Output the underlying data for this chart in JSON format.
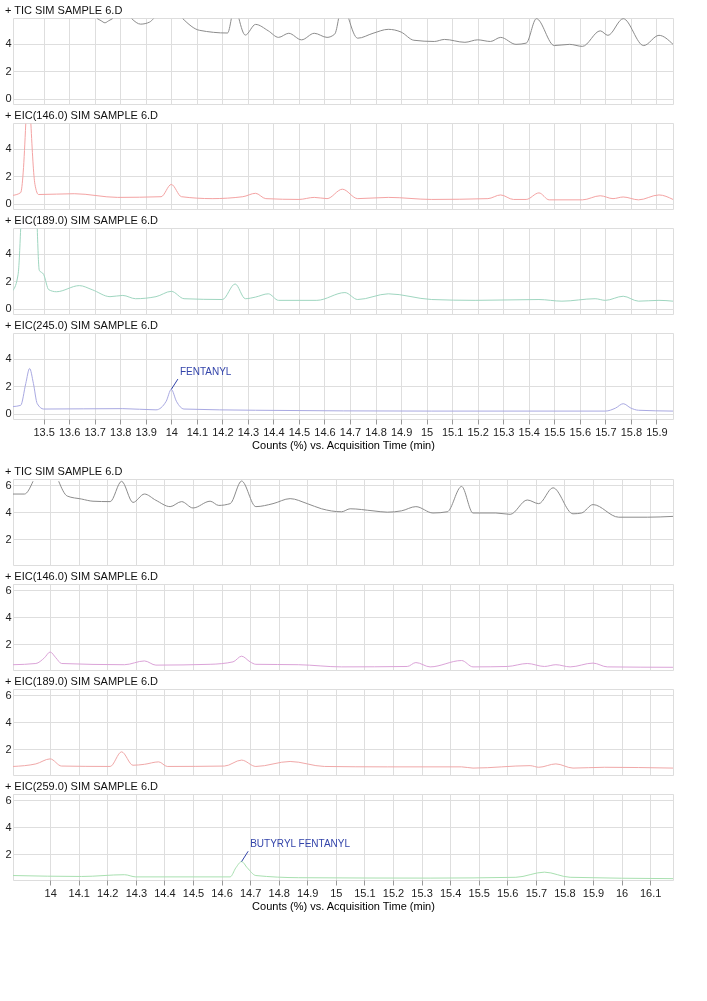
{
  "chart_data": [
    {
      "type": "line",
      "title": "+ TIC SIM SAMPLE 6.D",
      "color": "#8c8c8c",
      "grid": true,
      "tick_labels": "y",
      "xlim": [
        13.38,
        15.965
      ],
      "ylim": [
        -0.4,
        5.9
      ],
      "yticks": [
        0,
        2,
        4
      ],
      "xticks": [
        13.5,
        13.6,
        13.7,
        13.8,
        13.9,
        14,
        14.1,
        14.2,
        14.3,
        14.4,
        14.5,
        14.6,
        14.7,
        14.8,
        14.9,
        15,
        15.1,
        15.2,
        15.3,
        15.4,
        15.5,
        15.6,
        15.7,
        15.8,
        15.9
      ],
      "x": [
        13.71,
        13.725,
        13.74,
        13.755,
        13.77,
        13.775,
        13.83,
        13.845,
        13.88,
        13.915,
        13.93,
        14.03,
        14.045,
        14.11,
        14.22,
        14.235,
        14.25,
        14.265,
        14.29,
        14.33,
        14.38,
        14.42,
        14.46,
        14.51,
        14.56,
        14.61,
        14.64,
        14.655,
        14.68,
        14.695,
        14.73,
        14.79,
        14.85,
        14.9,
        14.95,
        15.03,
        15.07,
        15.15,
        15.2,
        15.25,
        15.29,
        15.35,
        15.39,
        15.43,
        15.5,
        15.56,
        15.61,
        15.68,
        15.71,
        15.77,
        15.85,
        15.91,
        15.965
      ],
      "values": [
        5.85,
        5.7,
        5.55,
        5.7,
        5.85,
        null,
        null,
        5.85,
        5.45,
        5.6,
        5.85,
        null,
        5.85,
        5.0,
        4.8,
        5.85,
        null,
        5.85,
        4.65,
        5.43,
        4.96,
        4.48,
        4.78,
        4.3,
        4.78,
        4.48,
        4.72,
        5.85,
        null,
        5.85,
        4.42,
        4.78,
        5.07,
        4.87,
        4.27,
        4.18,
        4.33,
        4.12,
        4.3,
        4.18,
        4.48,
        3.97,
        4.06,
        5.85,
        3.88,
        3.97,
        3.82,
        4.96,
        4.63,
        5.85,
        3.88,
        4.63,
        3.97
      ]
    },
    {
      "type": "line",
      "title": "+ EIC(146.0) SIM SAMPLE 6.D",
      "color": "#f4a3a3",
      "grid": true,
      "tick_labels": "y",
      "xlim": [
        13.38,
        15.965
      ],
      "ylim": [
        -0.4,
        5.9
      ],
      "yticks": [
        0,
        2,
        4
      ],
      "xticks": [
        13.5,
        13.6,
        13.7,
        13.8,
        13.9,
        14,
        14.1,
        14.2,
        14.3,
        14.4,
        14.5,
        14.6,
        14.7,
        14.8,
        14.9,
        15,
        15.1,
        15.2,
        15.3,
        15.4,
        15.5,
        15.6,
        15.7,
        15.8,
        15.9
      ],
      "x": [
        13.38,
        13.41,
        13.42,
        13.43,
        13.44,
        13.45,
        13.466,
        13.48,
        13.62,
        13.79,
        13.96,
        14.0,
        14.04,
        14.16,
        14.28,
        14.33,
        14.37,
        14.5,
        14.56,
        14.61,
        14.67,
        14.73,
        14.85,
        15.02,
        15.24,
        15.29,
        15.34,
        15.39,
        15.44,
        15.48,
        15.61,
        15.68,
        15.73,
        15.77,
        15.83,
        15.91,
        15.965
      ],
      "values": [
        0.6,
        0.8,
        2.3,
        5.85,
        null,
        5.85,
        1.4,
        0.66,
        0.72,
        0.45,
        0.5,
        1.4,
        0.5,
        0.36,
        0.5,
        0.75,
        0.36,
        0.3,
        0.45,
        0.36,
        1.05,
        0.36,
        0.45,
        0.3,
        0.36,
        0.63,
        0.3,
        0.3,
        0.78,
        0.27,
        0.27,
        0.57,
        0.36,
        0.48,
        0.27,
        0.63,
        0.3
      ]
    },
    {
      "type": "line",
      "title": "+ EIC(189.0) SIM SAMPLE 6.D",
      "color": "#9fd6c0",
      "grid": true,
      "tick_labels": "y",
      "xlim": [
        13.38,
        15.965
      ],
      "ylim": [
        -0.4,
        5.9
      ],
      "yticks": [
        0,
        2,
        4
      ],
      "xticks": [
        13.5,
        13.6,
        13.7,
        13.8,
        13.9,
        14,
        14.1,
        14.2,
        14.3,
        14.4,
        14.5,
        14.6,
        14.7,
        14.8,
        14.9,
        15,
        15.1,
        15.2,
        15.3,
        15.4,
        15.5,
        15.6,
        15.7,
        15.8,
        15.9
      ],
      "x": [
        13.38,
        13.4,
        13.41,
        13.44,
        13.475,
        13.483,
        13.5,
        13.52,
        13.55,
        13.64,
        13.69,
        13.76,
        13.81,
        13.86,
        13.94,
        14.0,
        14.05,
        14.2,
        14.25,
        14.29,
        14.33,
        14.38,
        14.42,
        14.57,
        14.68,
        14.73,
        14.85,
        15.02,
        15.19,
        15.44,
        15.53,
        15.66,
        15.7,
        15.77,
        15.83,
        15.91,
        15.965
      ],
      "values": [
        1.32,
        2.5,
        5.85,
        null,
        5.85,
        2.8,
        2.5,
        1.38,
        1.23,
        1.68,
        1.38,
        0.87,
        0.96,
        0.72,
        0.87,
        1.26,
        0.72,
        0.66,
        1.8,
        0.72,
        0.84,
        1.08,
        0.6,
        0.6,
        1.17,
        0.66,
        1.08,
        0.66,
        0.6,
        0.66,
        0.54,
        0.72,
        0.6,
        0.9,
        0.54,
        0.6,
        0.54
      ]
    },
    {
      "type": "line",
      "title": "+ EIC(245.0) SIM SAMPLE 6.D",
      "color": "#a9a9e2",
      "grid": true,
      "xlabel": "Counts (%) vs. Acquisition Time (min)",
      "xlim": [
        13.38,
        15.965
      ],
      "ylim": [
        -0.4,
        5.9
      ],
      "yticks": [
        0,
        2,
        4
      ],
      "xticks": [
        13.5,
        13.6,
        13.7,
        13.8,
        13.9,
        14,
        14.1,
        14.2,
        14.3,
        14.4,
        14.5,
        14.6,
        14.7,
        14.8,
        14.9,
        15,
        15.1,
        15.2,
        15.3,
        15.4,
        15.5,
        15.6,
        15.7,
        15.8,
        15.9
      ],
      "x": [
        13.38,
        13.41,
        13.43,
        13.445,
        13.46,
        13.475,
        13.5,
        13.81,
        13.94,
        13.98,
        14.0,
        14.02,
        14.05,
        14.33,
        15.02,
        15.7,
        15.74,
        15.77,
        15.8,
        15.83,
        15.965
      ],
      "values": [
        0.51,
        0.6,
        2.2,
        3.3,
        2.2,
        0.72,
        0.33,
        0.36,
        0.27,
        0.9,
        1.77,
        0.9,
        0.33,
        0.24,
        0.18,
        0.18,
        0.4,
        0.72,
        0.4,
        0.24,
        0.18
      ],
      "annotations": [
        {
          "text": "FENTANYL",
          "x": 14.0,
          "y": 1.77
        }
      ]
    },
    {
      "type": "line",
      "title": "+ TIC SIM SAMPLE 6.D",
      "color": "#8c8c8c",
      "grid": true,
      "tick_labels": "y",
      "xlim": [
        13.87,
        16.18
      ],
      "ylim": [
        0.1,
        6.45
      ],
      "yticks": [
        2,
        4,
        6
      ],
      "xticks": [
        14,
        14.1,
        14.2,
        14.3,
        14.4,
        14.5,
        14.6,
        14.7,
        14.8,
        14.9,
        15,
        15.1,
        15.2,
        15.3,
        15.4,
        15.5,
        15.6,
        15.7,
        15.8,
        15.9,
        16,
        16.1
      ],
      "x": [
        13.87,
        13.91,
        13.94,
        13.96,
        14.03,
        14.06,
        14.11,
        14.15,
        14.21,
        14.25,
        14.29,
        14.33,
        14.37,
        14.42,
        14.46,
        14.5,
        14.56,
        14.59,
        14.63,
        14.67,
        14.72,
        14.78,
        14.84,
        14.9,
        14.95,
        15.02,
        15.05,
        15.13,
        15.18,
        15.23,
        15.28,
        15.34,
        15.39,
        15.44,
        15.48,
        15.56,
        15.61,
        15.67,
        15.71,
        15.76,
        15.83,
        15.86,
        15.9,
        15.99,
        16.09,
        16.18
      ],
      "values": [
        5.34,
        5.34,
        6.28,
        null,
        6.28,
        5.19,
        4.97,
        4.81,
        4.78,
        6.28,
        4.72,
        5.34,
        4.88,
        4.41,
        4.78,
        4.31,
        4.81,
        4.5,
        4.63,
        6.3,
        4.41,
        4.63,
        5.0,
        4.63,
        4.25,
        4.03,
        4.25,
        4.1,
        4.0,
        4.1,
        4.41,
        3.94,
        4.03,
        5.9,
        3.94,
        3.94,
        3.84,
        4.9,
        4.63,
        5.8,
        3.88,
        3.94,
        4.56,
        3.63,
        3.63,
        3.69
      ]
    },
    {
      "type": "line",
      "title": "+ EIC(146.0) SIM SAMPLE 6.D",
      "color": "#dba3d8",
      "grid": true,
      "tick_labels": "y",
      "xlim": [
        13.87,
        16.18
      ],
      "ylim": [
        0.1,
        6.45
      ],
      "yticks": [
        2,
        4,
        6
      ],
      "xticks": [
        14,
        14.1,
        14.2,
        14.3,
        14.4,
        14.5,
        14.6,
        14.7,
        14.8,
        14.9,
        15,
        15.1,
        15.2,
        15.3,
        15.4,
        15.5,
        15.6,
        15.7,
        15.8,
        15.9,
        16,
        16.1
      ],
      "x": [
        13.87,
        13.95,
        13.98,
        14.0,
        14.02,
        14.04,
        14.26,
        14.33,
        14.37,
        14.56,
        14.64,
        14.67,
        14.7,
        14.72,
        14.87,
        15.02,
        15.25,
        15.28,
        15.33,
        15.44,
        15.48,
        15.6,
        15.67,
        15.73,
        15.77,
        15.82,
        15.9,
        15.95,
        16.18
      ],
      "values": [
        0.49,
        0.58,
        1.0,
        1.43,
        1.0,
        0.58,
        0.49,
        0.77,
        0.46,
        0.52,
        0.7,
        1.12,
        0.7,
        0.52,
        0.49,
        0.33,
        0.36,
        0.65,
        0.33,
        0.8,
        0.33,
        0.36,
        0.58,
        0.36,
        0.49,
        0.33,
        0.61,
        0.33,
        0.3
      ]
    },
    {
      "type": "line",
      "title": "+ EIC(189.0) SIM SAMPLE 6.D",
      "color": "#f0a8a8",
      "grid": true,
      "tick_labels": "y",
      "xlim": [
        13.87,
        16.18
      ],
      "ylim": [
        0.1,
        6.45
      ],
      "yticks": [
        2,
        4,
        6
      ],
      "xticks": [
        14,
        14.1,
        14.2,
        14.3,
        14.4,
        14.5,
        14.6,
        14.7,
        14.8,
        14.9,
        15,
        15.1,
        15.2,
        15.3,
        15.4,
        15.5,
        15.6,
        15.7,
        15.8,
        15.9,
        16,
        16.1
      ],
      "x": [
        13.87,
        13.95,
        14.0,
        14.04,
        14.21,
        14.25,
        14.29,
        14.33,
        14.38,
        14.41,
        14.61,
        14.67,
        14.72,
        14.84,
        14.96,
        15.18,
        15.44,
        15.48,
        15.68,
        15.71,
        15.77,
        15.83,
        15.94,
        16.18
      ],
      "values": [
        0.73,
        0.92,
        1.29,
        0.76,
        0.73,
        1.81,
        0.82,
        0.89,
        1.07,
        0.73,
        0.76,
        1.2,
        0.73,
        1.1,
        0.73,
        0.7,
        0.7,
        0.61,
        0.79,
        0.67,
        0.92,
        0.61,
        0.67,
        0.61
      ]
    },
    {
      "type": "line",
      "title": "+ EIC(259.0) SIM SAMPLE 6.D",
      "color": "#a8e0b0",
      "grid": true,
      "xlabel": "Counts (%) vs. Acquisition Time (min)",
      "xlim": [
        13.87,
        16.18
      ],
      "ylim": [
        0.1,
        6.45
      ],
      "yticks": [
        2,
        4,
        6
      ],
      "xticks": [
        14,
        14.1,
        14.2,
        14.3,
        14.4,
        14.5,
        14.6,
        14.7,
        14.8,
        14.9,
        15,
        15.1,
        15.2,
        15.3,
        15.4,
        15.5,
        15.6,
        15.7,
        15.8,
        15.9,
        16,
        16.1
      ],
      "x": [
        13.87,
        14.11,
        14.26,
        14.3,
        14.63,
        14.65,
        14.67,
        14.69,
        14.72,
        14.87,
        15.33,
        15.63,
        15.73,
        15.82,
        16.18
      ],
      "values": [
        0.43,
        0.36,
        0.49,
        0.33,
        0.33,
        1.0,
        1.46,
        1.0,
        0.43,
        0.27,
        0.24,
        0.3,
        0.68,
        0.3,
        0.2
      ],
      "annotations": [
        {
          "text": "BUTYRYL FENTANYL",
          "x": 14.67,
          "y": 1.46
        }
      ]
    }
  ]
}
